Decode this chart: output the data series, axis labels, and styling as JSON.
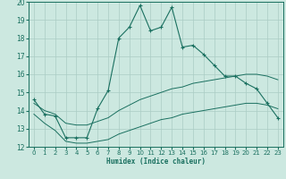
{
  "title": "",
  "xlabel": "Humidex (Indice chaleur)",
  "bg_color": "#cce8e0",
  "grid_color": "#aaccC4",
  "line_color": "#1a7060",
  "xlim": [
    -0.5,
    23.5
  ],
  "ylim": [
    12,
    20
  ],
  "yticks": [
    12,
    13,
    14,
    15,
    16,
    17,
    18,
    19,
    20
  ],
  "xticks": [
    0,
    1,
    2,
    3,
    4,
    5,
    6,
    7,
    8,
    9,
    10,
    11,
    12,
    13,
    14,
    15,
    16,
    17,
    18,
    19,
    20,
    21,
    22,
    23
  ],
  "series_main_x": [
    0,
    1,
    2,
    3,
    4,
    5,
    6,
    7,
    8,
    9,
    10,
    11,
    12,
    13,
    14,
    15,
    16,
    17,
    18,
    19,
    20,
    21,
    22,
    23
  ],
  "series_main_y": [
    14.6,
    13.8,
    13.7,
    12.5,
    12.5,
    12.5,
    14.1,
    15.1,
    18.0,
    18.6,
    19.8,
    18.4,
    18.6,
    19.7,
    17.5,
    17.6,
    17.1,
    16.5,
    15.9,
    15.9,
    15.5,
    15.2,
    14.4,
    13.6
  ],
  "series_upper_x": [
    0,
    1,
    2,
    3,
    4,
    5,
    6,
    7,
    8,
    9,
    10,
    11,
    12,
    13,
    14,
    15,
    16,
    17,
    18,
    19,
    20,
    21,
    22,
    23
  ],
  "series_upper_y": [
    14.4,
    14.0,
    13.8,
    13.3,
    13.2,
    13.2,
    13.4,
    13.6,
    14.0,
    14.3,
    14.6,
    14.8,
    15.0,
    15.2,
    15.3,
    15.5,
    15.6,
    15.7,
    15.8,
    15.9,
    16.0,
    16.0,
    15.9,
    15.7
  ],
  "series_lower_x": [
    0,
    1,
    2,
    3,
    4,
    5,
    6,
    7,
    8,
    9,
    10,
    11,
    12,
    13,
    14,
    15,
    16,
    17,
    18,
    19,
    20,
    21,
    22,
    23
  ],
  "series_lower_y": [
    13.8,
    13.3,
    12.9,
    12.3,
    12.2,
    12.2,
    12.3,
    12.4,
    12.7,
    12.9,
    13.1,
    13.3,
    13.5,
    13.6,
    13.8,
    13.9,
    14.0,
    14.1,
    14.2,
    14.3,
    14.4,
    14.4,
    14.3,
    14.1
  ]
}
